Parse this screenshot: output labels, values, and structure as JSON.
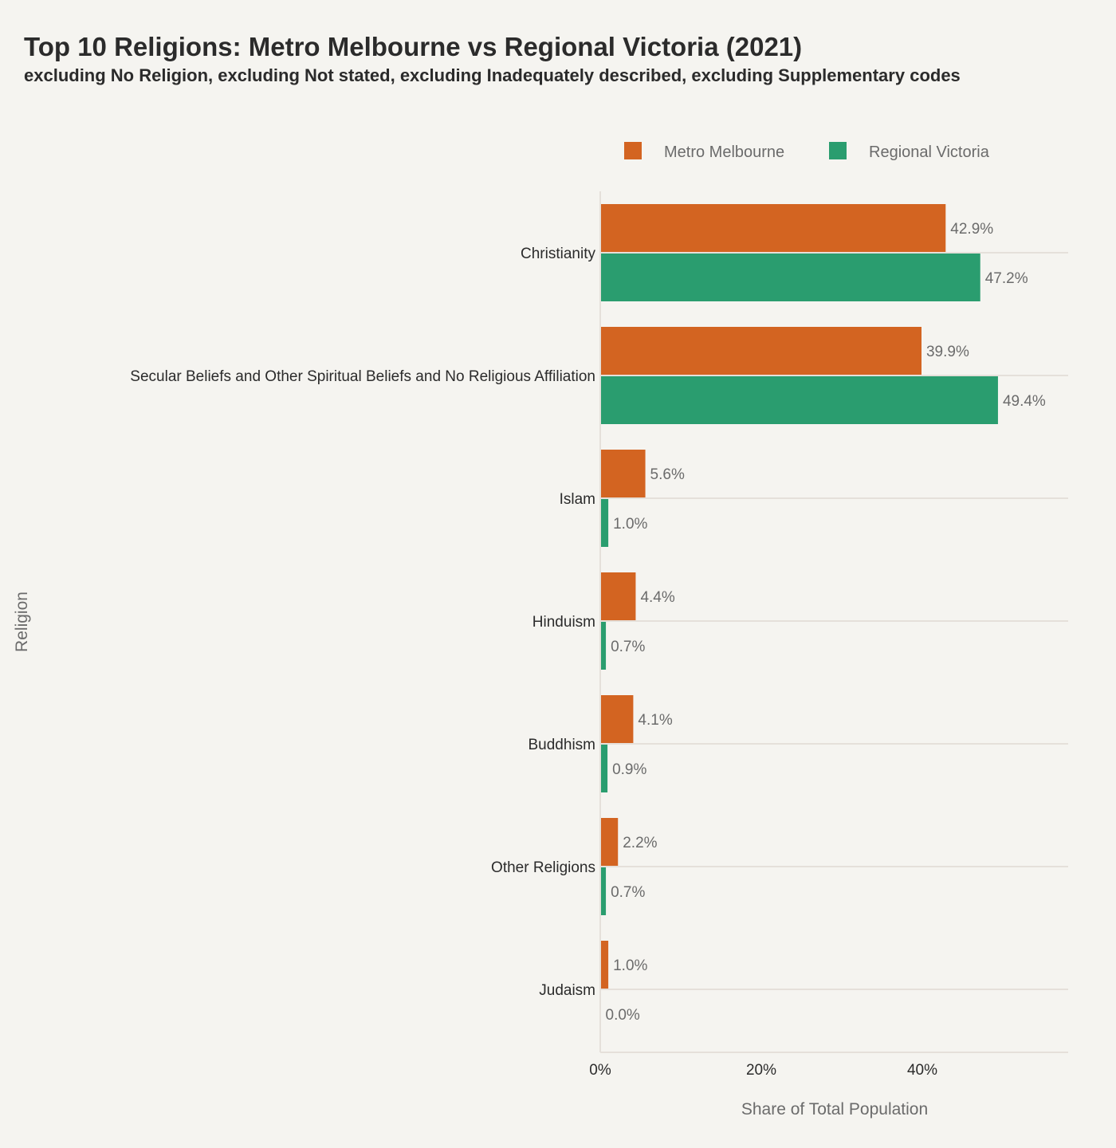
{
  "chart_data": {
    "type": "bar",
    "orientation": "horizontal",
    "title": "Top 10 Religions: Metro Melbourne vs Regional Victoria (2021)",
    "subtitle": "excluding No Religion, excluding Not stated, excluding Inadequately described, excluding Supplementary codes",
    "xlabel": "Share of Total Population",
    "ylabel": "Religion",
    "xlim": [
      0,
      58
    ],
    "xticks": [
      0,
      20,
      40
    ],
    "xtick_labels": [
      "0%",
      "20%",
      "40%"
    ],
    "legend_position": "top-right",
    "categories": [
      "Christianity",
      "Secular Beliefs and Other Spiritual Beliefs and No Religious Affiliation",
      "Islam",
      "Hinduism",
      "Buddhism",
      "Other Religions",
      "Judaism"
    ],
    "series": [
      {
        "name": "Metro Melbourne",
        "color": "#d36421",
        "values": [
          42.9,
          39.9,
          5.6,
          4.4,
          4.1,
          2.2,
          1.0
        ],
        "labels": [
          "42.9%",
          "39.9%",
          "5.6%",
          "4.4%",
          "4.1%",
          "2.2%",
          "1.0%"
        ]
      },
      {
        "name": "Regional Victoria",
        "color": "#2a9d6f",
        "values": [
          47.2,
          49.4,
          1.0,
          0.7,
          0.9,
          0.7,
          0.0
        ],
        "labels": [
          "47.2%",
          "49.4%",
          "1.0%",
          "0.7%",
          "0.9%",
          "0.7%",
          "0.0%"
        ]
      }
    ]
  }
}
